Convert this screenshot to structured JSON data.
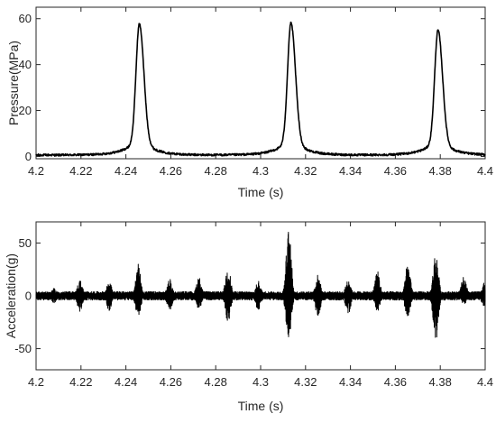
{
  "chart_data": [
    {
      "type": "line",
      "title": "",
      "xlabel": "Time (s)",
      "ylabel": "Pressure(MPa)",
      "xlim": [
        4.2,
        4.4
      ],
      "ylim": [
        -1,
        65
      ],
      "xticks": [
        "4.2",
        "4.22",
        "4.24",
        "4.26",
        "4.28",
        "4.3",
        "4.32",
        "4.34",
        "4.36",
        "4.38",
        "4.4"
      ],
      "yticks": [
        "0",
        "20",
        "40",
        "60"
      ],
      "grid": false,
      "line_color": "#000000",
      "baseline": 0.6,
      "peaks": [
        {
          "t": 4.246,
          "value": 64
        },
        {
          "t": 4.3135,
          "value": 64.5
        },
        {
          "t": 4.379,
          "value": 61
        }
      ],
      "series": [
        {
          "values_desc": "",
          "x": [
            4.2,
            4.225,
            4.235,
            4.24,
            4.243,
            4.245,
            4.246,
            4.247,
            4.25,
            4.255,
            4.265,
            4.29,
            4.303,
            4.309,
            4.312,
            4.3135,
            4.315,
            4.318,
            4.323,
            4.335,
            4.36,
            4.369,
            4.374,
            4.377,
            4.379,
            4.381,
            4.384,
            4.39,
            4.4
          ],
          "y": [
            0.5,
            1,
            3,
            10,
            35,
            55,
            64,
            55,
            25,
            8,
            2,
            1,
            5,
            30,
            55,
            64.5,
            50,
            20,
            6,
            1.5,
            1,
            4,
            28,
            50,
            61,
            45,
            15,
            3,
            1
          ]
        }
      ]
    },
    {
      "type": "line",
      "title": "",
      "xlabel": "Time (s)",
      "ylabel": "Acceleration(g)",
      "xlim": [
        4.2,
        4.4
      ],
      "ylim": [
        -70,
        70
      ],
      "xticks": [
        "4.2",
        "4.22",
        "4.24",
        "4.26",
        "4.28",
        "4.3",
        "4.32",
        "4.34",
        "4.36",
        "4.38",
        "4.4"
      ],
      "yticks": [
        "-50",
        "0",
        "50"
      ],
      "grid": false,
      "line_color": "#000000",
      "noise_amplitude": 4,
      "bursts": [
        {
          "t": 4.208,
          "pos": 7,
          "neg": -7
        },
        {
          "t": 4.2195,
          "pos": 15,
          "neg": -15
        },
        {
          "t": 4.2325,
          "pos": 14,
          "neg": -14
        },
        {
          "t": 4.2455,
          "pos": 30,
          "neg": -20
        },
        {
          "t": 4.2595,
          "pos": 16,
          "neg": -14
        },
        {
          "t": 4.2725,
          "pos": 18,
          "neg": -13
        },
        {
          "t": 4.2855,
          "pos": 28,
          "neg": -26
        },
        {
          "t": 4.299,
          "pos": 14,
          "neg": -14
        },
        {
          "t": 4.3125,
          "pos": 63,
          "neg": -43
        },
        {
          "t": 4.3255,
          "pos": 20,
          "neg": -20
        },
        {
          "t": 4.339,
          "pos": 17,
          "neg": -17
        },
        {
          "t": 4.352,
          "pos": 24,
          "neg": -15
        },
        {
          "t": 4.3655,
          "pos": 30,
          "neg": -22
        },
        {
          "t": 4.378,
          "pos": 42,
          "neg": -42
        },
        {
          "t": 4.3905,
          "pos": 18,
          "neg": -9
        },
        {
          "t": 4.3995,
          "pos": 12,
          "neg": -10
        }
      ]
    }
  ]
}
